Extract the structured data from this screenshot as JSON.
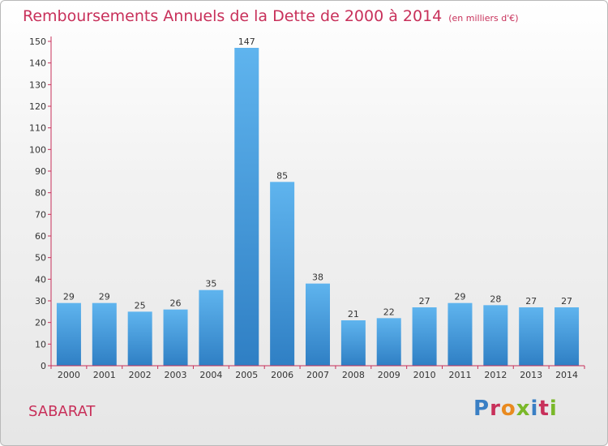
{
  "header": {
    "title": "Remboursements Annuels de la Dette de 2000 à 2014",
    "unit": "(en milliers d'€)"
  },
  "commune": "SABARAT",
  "logo": {
    "text": "Proxiti",
    "colors": [
      "#3a7fc4",
      "#c8305a",
      "#e98a1f",
      "#7ab829",
      "#3a7fc4",
      "#c8305a",
      "#7ab829"
    ]
  },
  "chart_data": {
    "type": "bar",
    "categories": [
      "2000",
      "2001",
      "2002",
      "2003",
      "2004",
      "2005",
      "2006",
      "2007",
      "2008",
      "2009",
      "2010",
      "2011",
      "2012",
      "2013",
      "2014"
    ],
    "values": [
      29,
      29,
      25,
      26,
      35,
      147,
      85,
      38,
      21,
      22,
      27,
      29,
      28,
      27,
      27
    ],
    "ylim": [
      0,
      150
    ],
    "yticks": [
      0,
      10,
      20,
      30,
      40,
      50,
      60,
      70,
      80,
      90,
      100,
      110,
      120,
      130,
      140,
      150
    ],
    "grid": false,
    "bar_color": "#4a9fe0",
    "axis_color": "#c8305a"
  }
}
